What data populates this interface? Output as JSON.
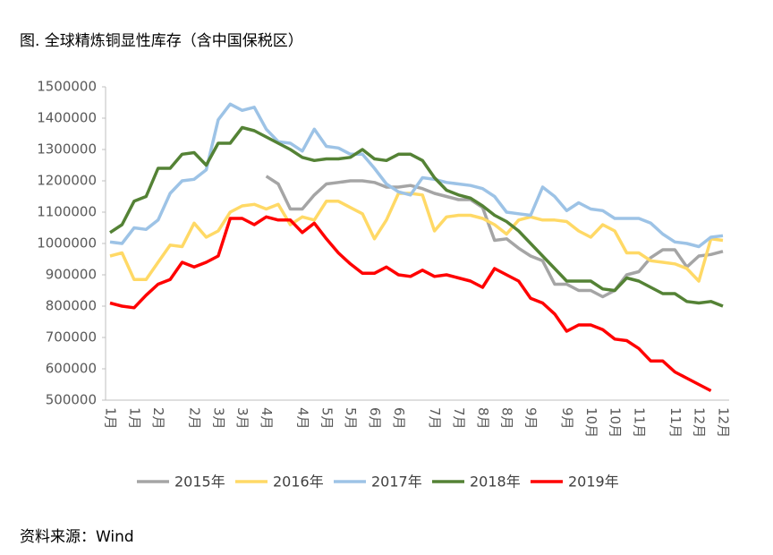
{
  "chart_data": {
    "type": "line",
    "title": "图. 全球精炼铜显性库存（含中国保税区）",
    "source": "资料来源：Wind",
    "categories": [
      "1月",
      null,
      "1月",
      null,
      "2月",
      null,
      null,
      "2月",
      null,
      "3月",
      null,
      "3月",
      null,
      "4月",
      null,
      null,
      "4月",
      null,
      "5月",
      null,
      "5月",
      null,
      "6月",
      null,
      "6月",
      null,
      null,
      "7月",
      null,
      "7月",
      null,
      "8月",
      null,
      "8月",
      null,
      "9月",
      null,
      null,
      "9月",
      null,
      "10月",
      null,
      "10月",
      null,
      "11月",
      null,
      null,
      "11月",
      null,
      "12月",
      null,
      "12月"
    ],
    "ylim": [
      500000,
      1500000
    ],
    "yticks": [
      500000,
      600000,
      700000,
      800000,
      900000,
      1000000,
      1100000,
      1200000,
      1300000,
      1400000,
      1500000
    ],
    "grid": false,
    "legend": "bottom",
    "series": [
      {
        "name": "2015年",
        "color": "#a5a5a5",
        "values": [
          null,
          null,
          null,
          null,
          null,
          null,
          null,
          null,
          null,
          null,
          null,
          null,
          null,
          1215000,
          1190000,
          1110000,
          1110000,
          1155000,
          1190000,
          1195000,
          1200000,
          1200000,
          1195000,
          1180000,
          1180000,
          1185000,
          1175000,
          1160000,
          1150000,
          1140000,
          1140000,
          1115000,
          1010000,
          1015000,
          985000,
          960000,
          945000,
          870000,
          870000,
          850000,
          850000,
          830000,
          850000,
          900000,
          910000,
          955000,
          980000,
          980000,
          925000,
          960000,
          965000,
          975000
        ]
      },
      {
        "name": "2016年",
        "color": "#ffd966",
        "values": [
          960000,
          970000,
          885000,
          885000,
          940000,
          995000,
          990000,
          1065000,
          1020000,
          1040000,
          1100000,
          1120000,
          1125000,
          1110000,
          1125000,
          1060000,
          1085000,
          1075000,
          1135000,
          1135000,
          1115000,
          1095000,
          1015000,
          1075000,
          1160000,
          1160000,
          1155000,
          1040000,
          1085000,
          1090000,
          1090000,
          1080000,
          1060000,
          1030000,
          1075000,
          1085000,
          1075000,
          1075000,
          1070000,
          1040000,
          1020000,
          1060000,
          1040000,
          970000,
          970000,
          945000,
          940000,
          935000,
          920000,
          880000,
          1015000,
          1010000
        ]
      },
      {
        "name": "2017年",
        "color": "#9dc3e6",
        "values": [
          1005000,
          1000000,
          1050000,
          1045000,
          1075000,
          1160000,
          1200000,
          1205000,
          1235000,
          1395000,
          1445000,
          1425000,
          1435000,
          1365000,
          1325000,
          1320000,
          1295000,
          1365000,
          1310000,
          1305000,
          1285000,
          1285000,
          1240000,
          1190000,
          1165000,
          1155000,
          1210000,
          1205000,
          1195000,
          1190000,
          1185000,
          1175000,
          1150000,
          1100000,
          1095000,
          1090000,
          1180000,
          1150000,
          1105000,
          1130000,
          1110000,
          1105000,
          1080000,
          1080000,
          1080000,
          1065000,
          1030000,
          1005000,
          1000000,
          990000,
          1020000,
          1025000
        ]
      },
      {
        "name": "2018年",
        "color": "#548235",
        "values": [
          1035000,
          1060000,
          1135000,
          1150000,
          1240000,
          1240000,
          1285000,
          1290000,
          1250000,
          1320000,
          1320000,
          1370000,
          1360000,
          1340000,
          1320000,
          1300000,
          1275000,
          1265000,
          1270000,
          1270000,
          1275000,
          1300000,
          1270000,
          1265000,
          1285000,
          1285000,
          1265000,
          1210000,
          1170000,
          1155000,
          1145000,
          1120000,
          1090000,
          1070000,
          1040000,
          1000000,
          960000,
          920000,
          880000,
          880000,
          880000,
          855000,
          850000,
          890000,
          880000,
          860000,
          840000,
          840000,
          815000,
          810000,
          815000,
          800000
        ]
      },
      {
        "name": "2019年",
        "color": "#ff0000",
        "values": [
          810000,
          800000,
          795000,
          835000,
          870000,
          885000,
          940000,
          925000,
          940000,
          960000,
          1080000,
          1080000,
          1060000,
          1085000,
          1075000,
          1075000,
          1035000,
          1065000,
          1015000,
          970000,
          935000,
          905000,
          905000,
          925000,
          900000,
          895000,
          915000,
          895000,
          900000,
          890000,
          880000,
          860000,
          920000,
          900000,
          880000,
          825000,
          810000,
          775000,
          720000,
          740000,
          740000,
          725000,
          695000,
          690000,
          665000,
          625000,
          625000,
          590000,
          570000,
          550000,
          530000,
          null
        ]
      }
    ]
  }
}
